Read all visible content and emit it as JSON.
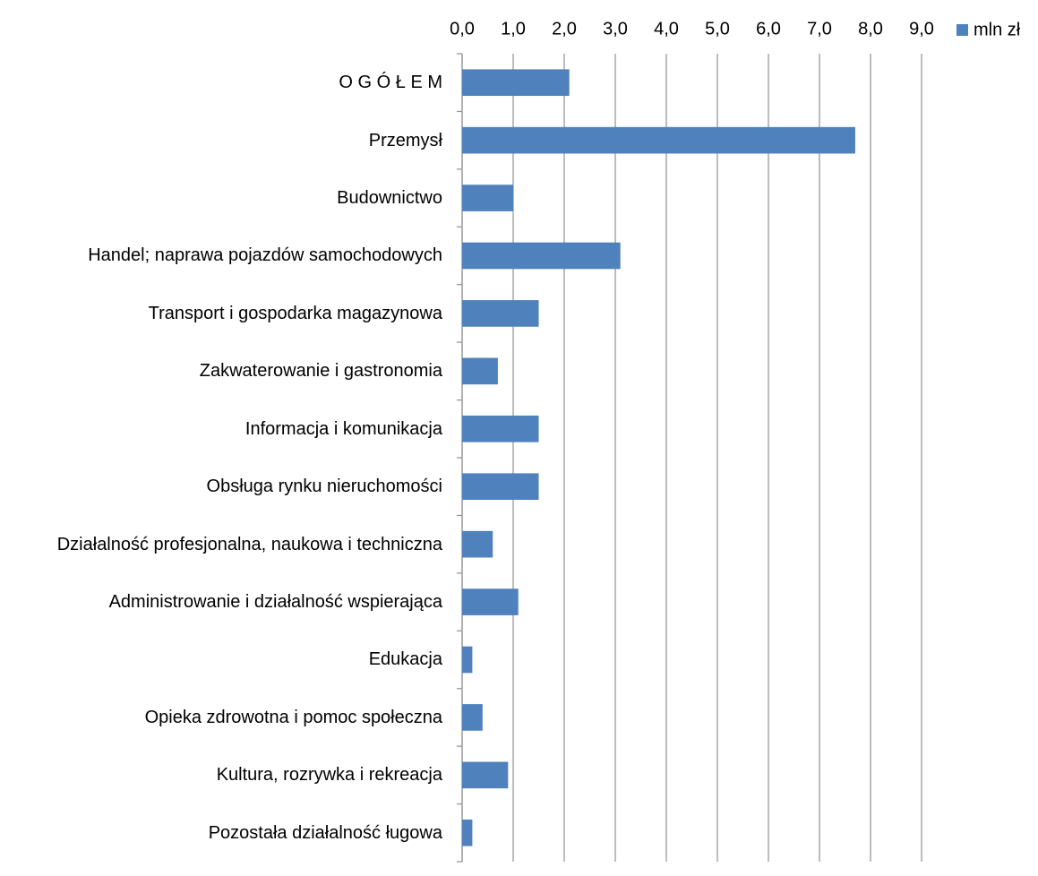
{
  "chart_data": {
    "type": "barh",
    "categories": [
      "O G Ó Ł E M",
      "Przemysł",
      "Budownictwo",
      "Handel; naprawa pojazdów samochodowych",
      "Transport i gospodarka magazynowa",
      "Zakwaterowanie i gastronomia",
      "Informacja i komunikacja",
      "Obsługa rynku nieruchomości",
      "Działalność profesjonalna, naukowa i techniczna",
      "Administrowanie i działalność wspierająca",
      "Edukacja",
      "Opieka zdrowotna i pomoc społeczna",
      "Kultura, rozrywka i rekreacja",
      "Pozostała działalność ługowa"
    ],
    "series": [
      {
        "name": "mln zł",
        "color": "#4f81bd",
        "values": [
          2.1,
          7.7,
          1.0,
          3.1,
          1.5,
          0.7,
          1.5,
          1.5,
          0.6,
          1.1,
          0.2,
          0.4,
          0.9,
          0.2
        ]
      }
    ],
    "xlim": [
      0,
      9
    ],
    "xticks": [
      {
        "value": 0,
        "label": "0,0"
      },
      {
        "value": 1,
        "label": "1,0"
      },
      {
        "value": 2,
        "label": "2,0"
      },
      {
        "value": 3,
        "label": "3,0"
      },
      {
        "value": 4,
        "label": "4,0"
      },
      {
        "value": 5,
        "label": "5,0"
      },
      {
        "value": 6,
        "label": "6,0"
      },
      {
        "value": 7,
        "label": "7,0"
      },
      {
        "value": 8,
        "label": "8,0"
      },
      {
        "value": 9,
        "label": "9,0"
      }
    ],
    "grid": true,
    "legend": "top-right"
  }
}
